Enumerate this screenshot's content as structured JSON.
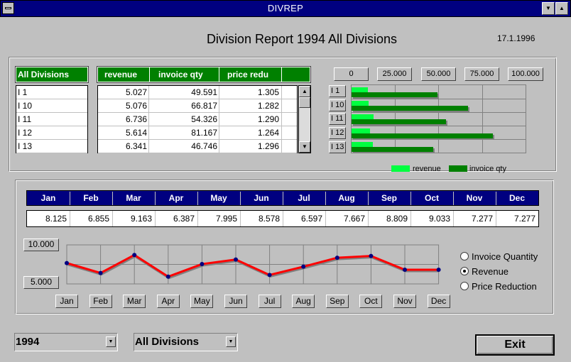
{
  "window": {
    "title": "DIVREP"
  },
  "header": {
    "title": "Division Report 1994 All Divisions",
    "date": "17.1.1996"
  },
  "divisions": {
    "header": "All Divisions",
    "items": [
      "I 1",
      "I 10",
      "I 11",
      "I 12",
      "I 13"
    ]
  },
  "table": {
    "columns": [
      "revenue",
      "invoice qty",
      "price redu"
    ],
    "rows": [
      [
        "5.027",
        "49.591",
        "1.305"
      ],
      [
        "5.076",
        "66.817",
        "1.282"
      ],
      [
        "6.736",
        "54.326",
        "1.290"
      ],
      [
        "5.614",
        "81.167",
        "1.264"
      ],
      [
        "6.341",
        "46.746",
        "1.296"
      ]
    ]
  },
  "bar_chart": {
    "scale_labels": [
      "0",
      "25.000",
      "50.000",
      "75.000",
      "100.000"
    ],
    "categories": [
      "I 1",
      "I 10",
      "I 11",
      "I 12",
      "I 13"
    ],
    "revenue": [
      5027,
      5076,
      6736,
      5614,
      6341
    ],
    "invoice_qty": [
      49591,
      66817,
      54326,
      81167,
      46746
    ],
    "legend": [
      "revenue",
      "invoice qty"
    ],
    "colors": {
      "revenue": "#00ff40",
      "invoice_qty": "#008000"
    }
  },
  "months": {
    "labels": [
      "Jan",
      "Feb",
      "Mar",
      "Apr",
      "May",
      "Jun",
      "Jul",
      "Aug",
      "Sep",
      "Oct",
      "Nov",
      "Dec"
    ],
    "values": [
      "8.125",
      "6.855",
      "9.163",
      "6.387",
      "7.995",
      "8.578",
      "6.597",
      "7.667",
      "8.809",
      "9.033",
      "7.277",
      "7.277"
    ]
  },
  "line_chart": {
    "y_max_label": "10.000",
    "y_min_label": "5.000",
    "ylim": [
      5000,
      10000
    ],
    "values": [
      8125,
      6855,
      9163,
      6387,
      7995,
      8578,
      6597,
      7667,
      8809,
      9033,
      7277,
      7277
    ],
    "colors": {
      "line": "#ff0000",
      "point": "#000080"
    }
  },
  "radio": {
    "options": [
      "Invoice Quantity",
      "Revenue",
      "Price Reduction"
    ],
    "selected": "Revenue"
  },
  "controls": {
    "year": "1994",
    "division": "All Divisions",
    "exit_label": "Exit"
  },
  "chart_data": [
    {
      "type": "bar",
      "categories": [
        "I 1",
        "I 10",
        "I 11",
        "I 12",
        "I 13"
      ],
      "series": [
        {
          "name": "revenue",
          "values": [
            5027,
            5076,
            6736,
            5614,
            6341
          ]
        },
        {
          "name": "invoice qty",
          "values": [
            49591,
            66817,
            54326,
            81167,
            46746
          ]
        }
      ],
      "xlim": [
        0,
        100000
      ],
      "tick_labels": [
        "0",
        "25.000",
        "50.000",
        "75.000",
        "100.000"
      ],
      "orientation": "horizontal",
      "legend": "bottom"
    },
    {
      "type": "line",
      "categories": [
        "Jan",
        "Feb",
        "Mar",
        "Apr",
        "May",
        "Jun",
        "Jul",
        "Aug",
        "Sep",
        "Oct",
        "Nov",
        "Dec"
      ],
      "values": [
        8125,
        6855,
        9163,
        6387,
        7995,
        8578,
        6597,
        7667,
        8809,
        9033,
        7277,
        7277
      ],
      "ylim": [
        5000,
        10000
      ],
      "tick_labels": [
        "5.000",
        "10.000"
      ],
      "grid": true
    }
  ]
}
